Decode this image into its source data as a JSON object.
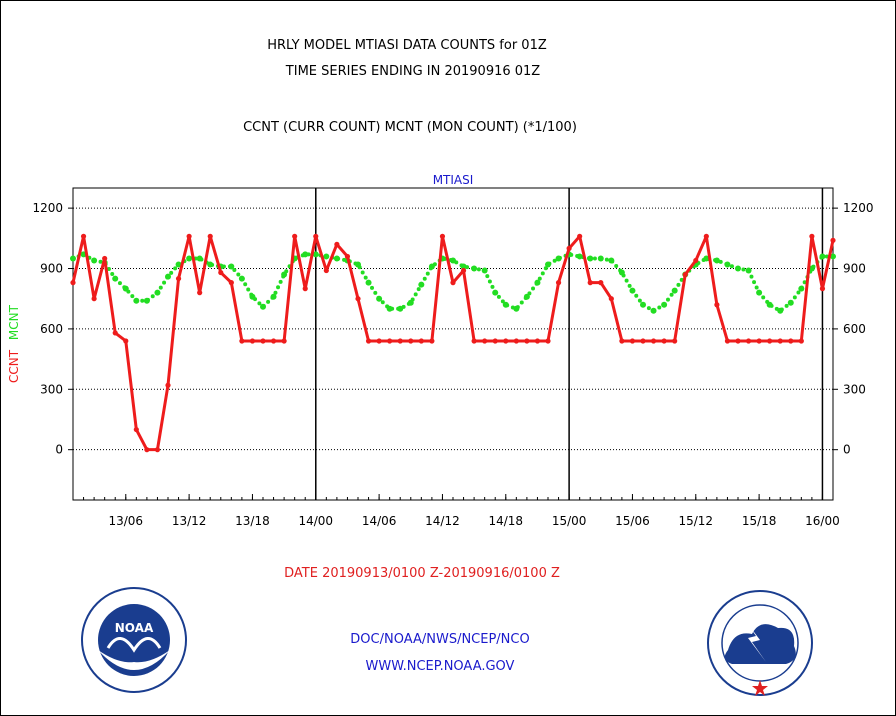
{
  "header": {
    "line1": "HRLY MODEL MTIASI DATA COUNTS for 01Z",
    "line2": "TIME SERIES ENDING IN 20190916 01Z",
    "line3": "CCNT (CURR COUNT) MCNT (MON COUNT) (*1/100)"
  },
  "footer": {
    "date_range": "DATE 20190913/0100 Z-20190916/0100 Z",
    "org": "DOC/NOAA/NWS/NCEP/NCO",
    "url": "WWW.NCEP.NOAA.GOV"
  },
  "logos": {
    "left": {
      "icon": "noaa-logo-icon",
      "text": "NOAA"
    },
    "right": {
      "icon": "nws-logo-icon"
    }
  },
  "colors": {
    "ccnt": "#ee1c1c",
    "mcnt": "#22dd22",
    "frame": "#000000",
    "plot_title": "#1a1acc",
    "date_label": "#e02020",
    "links": "#1a1acc"
  },
  "chart_data": {
    "type": "line",
    "title": "MTIASI",
    "ylabel_parts": [
      {
        "text": "CCNT",
        "color": "#ee1c1c"
      },
      {
        "text": "MCNT",
        "color": "#22dd22"
      }
    ],
    "ylim": [
      -250,
      1300
    ],
    "yticks": [
      0,
      300,
      600,
      900,
      1200
    ],
    "xlim": [
      0,
      72
    ],
    "xticks": [
      {
        "x": 5,
        "label": "13/06"
      },
      {
        "x": 11,
        "label": "13/12"
      },
      {
        "x": 17,
        "label": "13/18"
      },
      {
        "x": 23,
        "label": "14/00"
      },
      {
        "x": 29,
        "label": "14/06"
      },
      {
        "x": 35,
        "label": "14/12"
      },
      {
        "x": 41,
        "label": "14/18"
      },
      {
        "x": 47,
        "label": "15/00"
      },
      {
        "x": 53,
        "label": "15/06"
      },
      {
        "x": 59,
        "label": "15/12"
      },
      {
        "x": 65,
        "label": "15/18"
      },
      {
        "x": 71,
        "label": "16/00"
      }
    ],
    "day_markers": [
      23,
      47,
      71
    ],
    "grid": "horizontal dotted at y ticks",
    "series": [
      {
        "name": "CCNT",
        "style": "solid line with dot markers",
        "values": [
          830,
          1060,
          750,
          950,
          580,
          540,
          100,
          0,
          0,
          320,
          850,
          1060,
          780,
          1060,
          880,
          830,
          540,
          540,
          540,
          540,
          540,
          1060,
          800,
          1060,
          890,
          1020,
          960,
          750,
          540,
          540,
          540,
          540,
          540,
          540,
          540,
          1060,
          830,
          890,
          540,
          540,
          540,
          540,
          540,
          540,
          540,
          540,
          830,
          1000,
          1060,
          830,
          830,
          750,
          540,
          540,
          540,
          540,
          540,
          540,
          870,
          940,
          1060,
          720,
          540,
          540,
          540,
          540,
          540,
          540,
          540,
          540,
          1060,
          800,
          1040
        ]
      },
      {
        "name": "MCNT",
        "style": "dotted line",
        "values": [
          950,
          970,
          940,
          930,
          850,
          800,
          740,
          740,
          780,
          860,
          920,
          950,
          950,
          920,
          910,
          910,
          850,
          760,
          710,
          760,
          870,
          950,
          970,
          970,
          960,
          950,
          940,
          920,
          830,
          750,
          700,
          700,
          730,
          820,
          910,
          950,
          940,
          910,
          900,
          890,
          780,
          720,
          700,
          760,
          830,
          920,
          950,
          970,
          960,
          950,
          950,
          940,
          880,
          790,
          720,
          690,
          720,
          790,
          870,
          920,
          950,
          940,
          920,
          900,
          890,
          780,
          720,
          690,
          730,
          800,
          900,
          960,
          960
        ]
      }
    ]
  }
}
